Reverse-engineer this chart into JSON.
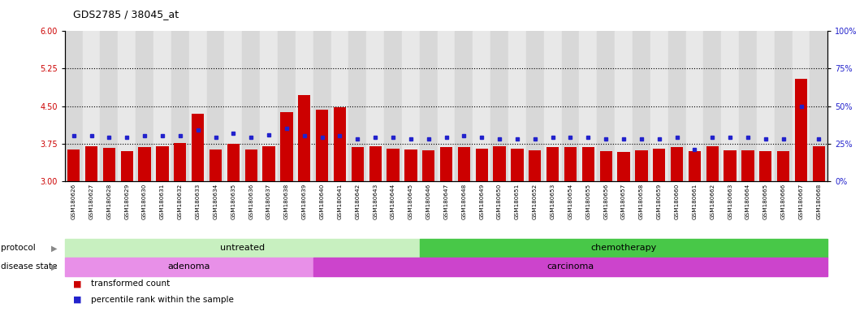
{
  "title": "GDS2785 / 38045_at",
  "samples": [
    "GSM180626",
    "GSM180627",
    "GSM180628",
    "GSM180629",
    "GSM180630",
    "GSM180631",
    "GSM180632",
    "GSM180633",
    "GSM180634",
    "GSM180635",
    "GSM180636",
    "GSM180637",
    "GSM180638",
    "GSM180639",
    "GSM180640",
    "GSM180641",
    "GSM180642",
    "GSM180643",
    "GSM180644",
    "GSM180645",
    "GSM180646",
    "GSM180647",
    "GSM180648",
    "GSM180649",
    "GSM180650",
    "GSM180651",
    "GSM180652",
    "GSM180653",
    "GSM180654",
    "GSM180655",
    "GSM180656",
    "GSM180657",
    "GSM180658",
    "GSM180659",
    "GSM180660",
    "GSM180661",
    "GSM180662",
    "GSM180663",
    "GSM180664",
    "GSM180665",
    "GSM180666",
    "GSM180667",
    "GSM180668"
  ],
  "transformed_count": [
    3.63,
    3.7,
    3.67,
    3.6,
    3.68,
    3.7,
    3.76,
    4.35,
    3.63,
    3.74,
    3.63,
    3.7,
    4.38,
    4.72,
    4.43,
    4.47,
    3.68,
    3.7,
    3.65,
    3.63,
    3.62,
    3.68,
    3.68,
    3.65,
    3.7,
    3.65,
    3.62,
    3.68,
    3.68,
    3.68,
    3.6,
    3.58,
    3.62,
    3.65,
    3.68,
    3.6,
    3.7,
    3.62,
    3.62,
    3.6,
    3.6,
    5.05,
    3.7
  ],
  "percentile_rank": [
    30,
    30,
    29,
    29,
    30,
    30,
    30,
    34,
    29,
    32,
    29,
    31,
    35,
    30,
    29,
    30,
    28,
    29,
    29,
    28,
    28,
    29,
    30,
    29,
    28,
    28,
    28,
    29,
    29,
    29,
    28,
    28,
    28,
    28,
    29,
    21,
    29,
    29,
    29,
    28,
    28,
    50,
    28
  ],
  "ylim_left": [
    3.0,
    6.0
  ],
  "ylim_right": [
    0,
    100
  ],
  "yticks_left": [
    3.0,
    3.75,
    4.5,
    5.25,
    6.0
  ],
  "yticks_right": [
    0,
    25,
    50,
    75,
    100
  ],
  "hlines": [
    3.75,
    4.5,
    5.25
  ],
  "bar_color": "#cc0000",
  "dot_color": "#2222cc",
  "bar_bottom": 3.0,
  "protocol_untreated": {
    "start": 0,
    "end": 20,
    "color": "#c8f0c0",
    "label": "untreated"
  },
  "protocol_chemo": {
    "start": 20,
    "end": 43,
    "color": "#48c848",
    "label": "chemotherapy"
  },
  "disease_adenoma": {
    "start": 0,
    "end": 14,
    "color": "#e890e8",
    "label": "adenoma"
  },
  "disease_carcinoma": {
    "start": 14,
    "end": 43,
    "color": "#cc44cc",
    "label": "carcinoma"
  },
  "legend_items": [
    "transformed count",
    "percentile rank within the sample"
  ],
  "bg_color": "#ffffff",
  "axis_label_color_left": "#cc0000",
  "axis_label_color_right": "#2222cc",
  "col_colors": [
    "#d8d8d8",
    "#e8e8e8"
  ]
}
